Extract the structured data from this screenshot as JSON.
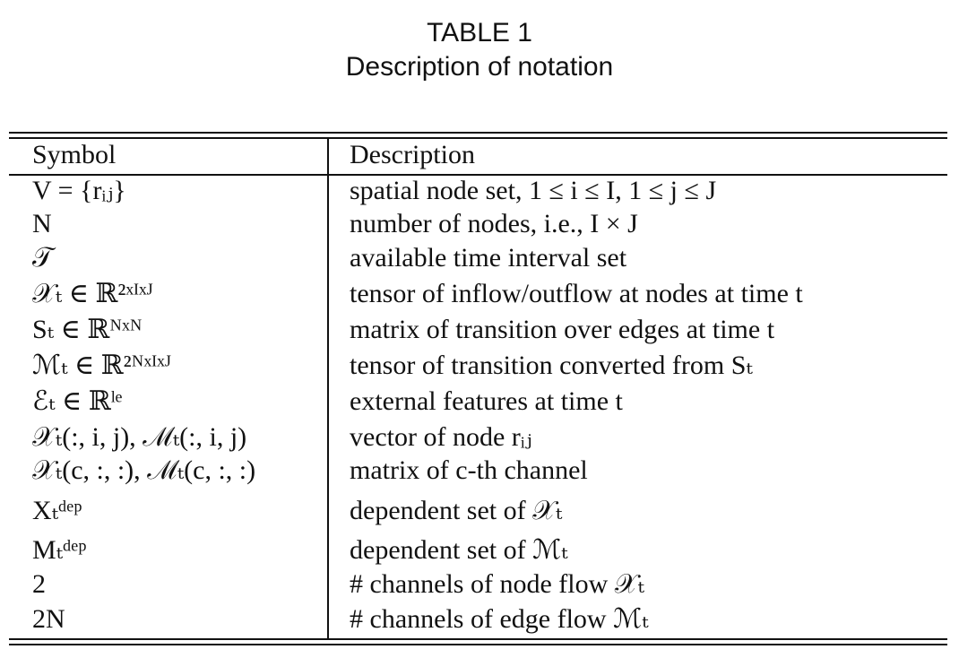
{
  "caption": {
    "label": "TABLE 1",
    "title": "Description of notation"
  },
  "table": {
    "headers": [
      "Symbol",
      "Description"
    ],
    "rows": [
      {
        "symbol": "V = {rᵢⱼ}",
        "description": "spatial node set, 1 ≤ i ≤ I, 1 ≤ j ≤ J"
      },
      {
        "symbol": "N",
        "description": "number of nodes, i.e., I × J"
      },
      {
        "symbol": "𝒯",
        "description": "available time interval set"
      },
      {
        "symbol": "𝒳ₜ ∈ ℝ²ˣᴵˣᴶ",
        "description": "tensor of inflow/outflow at nodes at time t"
      },
      {
        "symbol": "Sₜ ∈ ℝᴺˣᴺ",
        "description": "matrix of transition over edges at time t"
      },
      {
        "symbol": "ℳₜ ∈ ℝ²ᴺˣᴵˣᴶ",
        "description": "tensor of transition converted from Sₜ"
      },
      {
        "symbol": "ℰₜ ∈ ℝˡᵉ",
        "description": "external features at time t"
      },
      {
        "symbol": "𝒳ₜ(:, i, j), ℳₜ(:, i, j)",
        "description": "vector of node rᵢⱼ"
      },
      {
        "symbol": "𝒳ₜ(c, :, :), ℳₜ(c, :, :)",
        "description": "matrix of c-th channel"
      },
      {
        "symbol": "Xₜᵈᵉᵖ",
        "description": "dependent set of 𝒳ₜ"
      },
      {
        "symbol": "Mₜᵈᵉᵖ",
        "description": "dependent set of ℳₜ"
      },
      {
        "symbol": "2",
        "description": "# channels of node flow 𝒳ₜ"
      },
      {
        "symbol": "2N",
        "description": "# channels of edge flow ℳₜ"
      }
    ]
  }
}
